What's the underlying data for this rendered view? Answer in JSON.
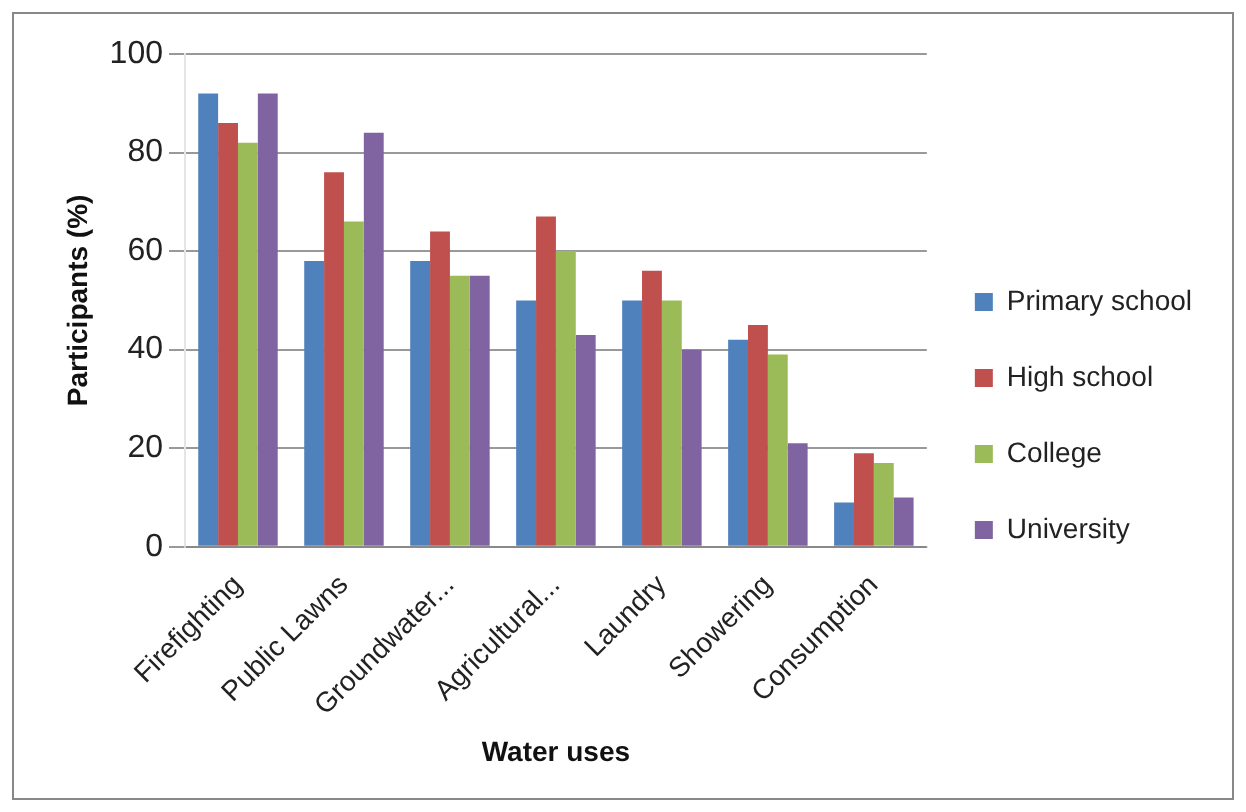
{
  "chart_data": {
    "type": "bar",
    "xlabel": "Water uses",
    "ylabel": "Participants (%)",
    "categories": [
      "Firefighting",
      "Public Lawns",
      "Groundwater...",
      "Agricultural...",
      "Laundry",
      "Showering",
      "Consumption"
    ],
    "series": [
      {
        "name": "Primary school",
        "color": "#4f81bd",
        "values": [
          92,
          58,
          58,
          50,
          50,
          42,
          9
        ]
      },
      {
        "name": "High school",
        "color": "#c0504d",
        "values": [
          86,
          76,
          64,
          67,
          56,
          45,
          19
        ]
      },
      {
        "name": "College",
        "color": "#9bbb59",
        "values": [
          82,
          66,
          55,
          60,
          50,
          39,
          17
        ]
      },
      {
        "name": "University",
        "color": "#8064a2",
        "values": [
          92,
          84,
          55,
          43,
          40,
          21,
          10
        ]
      }
    ],
    "ylim": [
      0,
      100
    ],
    "yticks": [
      0,
      20,
      40,
      60,
      80,
      100
    ],
    "grid": "y",
    "legend": "right"
  }
}
